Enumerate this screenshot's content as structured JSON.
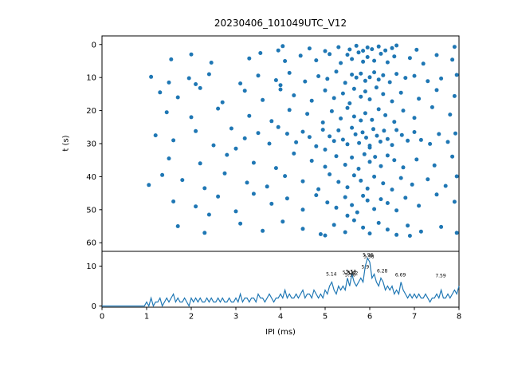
{
  "accent_color": "#1f77b4",
  "chart_data": [
    {
      "type": "scatter",
      "title": "20230406_101049UTC_V12",
      "ylabel": "t (s)",
      "xlim": [
        0,
        8
      ],
      "ylim": [
        63,
        -3
      ],
      "y_inverted": true,
      "yticks": [
        0,
        10,
        20,
        30,
        40,
        50,
        60
      ],
      "marker_color": "#1f77b4",
      "points": [
        [
          4.05,
          0.5
        ],
        [
          4.65,
          1.2
        ],
        [
          5.3,
          0.8
        ],
        [
          5.55,
          1.5
        ],
        [
          5.7,
          0.4
        ],
        [
          5.85,
          1.9
        ],
        [
          5.95,
          0.9
        ],
        [
          6.05,
          1.4
        ],
        [
          6.2,
          0.6
        ],
        [
          6.35,
          1.8
        ],
        [
          6.5,
          1.1
        ],
        [
          6.6,
          0.3
        ],
        [
          7.05,
          1.6
        ],
        [
          7.9,
          0.7
        ],
        [
          3.95,
          1.8
        ],
        [
          5.0,
          2.0
        ],
        [
          1.55,
          4.5
        ],
        [
          2.0,
          3.0
        ],
        [
          2.45,
          5.5
        ],
        [
          3.3,
          4.2
        ],
        [
          3.55,
          2.6
        ],
        [
          4.1,
          5.0
        ],
        [
          4.45,
          3.4
        ],
        [
          4.8,
          4.8
        ],
        [
          5.1,
          2.9
        ],
        [
          5.35,
          5.6
        ],
        [
          5.5,
          3.1
        ],
        [
          5.6,
          4.4
        ],
        [
          5.75,
          2.4
        ],
        [
          5.85,
          5.2
        ],
        [
          5.95,
          3.8
        ],
        [
          6.1,
          4.9
        ],
        [
          6.25,
          2.8
        ],
        [
          6.4,
          5.4
        ],
        [
          6.55,
          3.6
        ],
        [
          6.9,
          4.1
        ],
        [
          7.2,
          5.8
        ],
        [
          7.5,
          3.2
        ],
        [
          7.85,
          4.6
        ],
        [
          1.1,
          9.8
        ],
        [
          1.5,
          11.5
        ],
        [
          1.95,
          10.2
        ],
        [
          2.4,
          9.0
        ],
        [
          3.1,
          11.8
        ],
        [
          3.5,
          9.4
        ],
        [
          3.9,
          10.8
        ],
        [
          4.2,
          8.6
        ],
        [
          4.55,
          11.2
        ],
        [
          4.85,
          9.6
        ],
        [
          5.05,
          10.4
        ],
        [
          5.25,
          8.2
        ],
        [
          5.45,
          11.6
        ],
        [
          5.6,
          9.1
        ],
        [
          5.7,
          10.0
        ],
        [
          5.8,
          8.8
        ],
        [
          5.9,
          11.0
        ],
        [
          6.0,
          9.9
        ],
        [
          6.1,
          8.4
        ],
        [
          6.2,
          10.6
        ],
        [
          6.3,
          9.3
        ],
        [
          6.45,
          11.4
        ],
        [
          6.6,
          8.9
        ],
        [
          6.8,
          10.1
        ],
        [
          7.0,
          9.5
        ],
        [
          7.3,
          11.1
        ],
        [
          7.6,
          10.3
        ],
        [
          7.95,
          9.2
        ],
        [
          2.1,
          12.0
        ],
        [
          4.0,
          12.3
        ],
        [
          1.3,
          14.5
        ],
        [
          1.7,
          16.0
        ],
        [
          2.2,
          13.2
        ],
        [
          2.7,
          17.5
        ],
        [
          3.2,
          14.0
        ],
        [
          3.6,
          16.8
        ],
        [
          4.0,
          13.6
        ],
        [
          4.3,
          15.4
        ],
        [
          4.7,
          17.0
        ],
        [
          5.0,
          13.9
        ],
        [
          5.2,
          16.2
        ],
        [
          5.4,
          14.8
        ],
        [
          5.55,
          17.8
        ],
        [
          5.65,
          13.4
        ],
        [
          5.8,
          15.8
        ],
        [
          5.9,
          14.2
        ],
        [
          6.0,
          16.6
        ],
        [
          6.15,
          13.0
        ],
        [
          6.3,
          15.0
        ],
        [
          6.5,
          17.2
        ],
        [
          6.7,
          14.6
        ],
        [
          7.1,
          16.4
        ],
        [
          7.5,
          13.8
        ],
        [
          7.9,
          15.6
        ],
        [
          1.45,
          20.5
        ],
        [
          2.0,
          22.0
        ],
        [
          2.6,
          19.4
        ],
        [
          3.3,
          21.6
        ],
        [
          3.8,
          23.2
        ],
        [
          4.2,
          19.8
        ],
        [
          4.6,
          21.0
        ],
        [
          4.95,
          23.6
        ],
        [
          5.15,
          20.2
        ],
        [
          5.35,
          22.4
        ],
        [
          5.5,
          19.2
        ],
        [
          5.65,
          21.8
        ],
        [
          5.8,
          23.0
        ],
        [
          5.9,
          20.8
        ],
        [
          6.05,
          22.8
        ],
        [
          6.2,
          19.6
        ],
        [
          6.35,
          21.4
        ],
        [
          6.55,
          23.4
        ],
        [
          6.75,
          20.0
        ],
        [
          7.0,
          22.2
        ],
        [
          7.4,
          19.0
        ],
        [
          7.8,
          21.2
        ],
        [
          1.2,
          27.5
        ],
        [
          1.6,
          29.0
        ],
        [
          2.1,
          26.2
        ],
        [
          2.5,
          30.5
        ],
        [
          2.9,
          25.4
        ],
        [
          3.2,
          28.4
        ],
        [
          3.5,
          26.8
        ],
        [
          3.75,
          30.0
        ],
        [
          3.95,
          25.0
        ],
        [
          4.15,
          27.0
        ],
        [
          4.35,
          29.6
        ],
        [
          4.5,
          26.4
        ],
        [
          4.65,
          28.0
        ],
        [
          4.8,
          30.8
        ],
        [
          4.95,
          25.8
        ],
        [
          5.1,
          27.8
        ],
        [
          5.2,
          29.2
        ],
        [
          5.3,
          26.0
        ],
        [
          5.4,
          28.8
        ],
        [
          5.5,
          30.2
        ],
        [
          5.6,
          25.2
        ],
        [
          5.68,
          27.2
        ],
        [
          5.76,
          29.8
        ],
        [
          5.84,
          26.6
        ],
        [
          5.92,
          28.2
        ],
        [
          6.0,
          30.6
        ],
        [
          6.08,
          25.6
        ],
        [
          6.16,
          27.6
        ],
        [
          6.24,
          29.4
        ],
        [
          6.32,
          26.1
        ],
        [
          6.4,
          28.6
        ],
        [
          6.5,
          30.4
        ],
        [
          6.6,
          25.9
        ],
        [
          6.72,
          27.4
        ],
        [
          6.85,
          29.1
        ],
        [
          7.0,
          26.5
        ],
        [
          7.15,
          28.9
        ],
        [
          7.35,
          30.1
        ],
        [
          7.55,
          27.1
        ],
        [
          7.75,
          29.5
        ],
        [
          7.92,
          26.9
        ],
        [
          3.0,
          31.5
        ],
        [
          5.0,
          31.8
        ],
        [
          6.0,
          31.2
        ],
        [
          1.5,
          34.5
        ],
        [
          2.2,
          36.0
        ],
        [
          2.8,
          33.4
        ],
        [
          3.4,
          35.8
        ],
        [
          3.9,
          37.4
        ],
        [
          4.3,
          33.0
        ],
        [
          4.7,
          35.2
        ],
        [
          5.0,
          37.0
        ],
        [
          5.25,
          33.8
        ],
        [
          5.45,
          36.4
        ],
        [
          5.6,
          34.2
        ],
        [
          5.75,
          37.6
        ],
        [
          5.88,
          33.2
        ],
        [
          6.0,
          35.5
        ],
        [
          6.12,
          34.0
        ],
        [
          6.25,
          36.8
        ],
        [
          6.4,
          33.6
        ],
        [
          6.55,
          35.0
        ],
        [
          6.75,
          37.2
        ],
        [
          7.05,
          34.8
        ],
        [
          7.45,
          36.6
        ],
        [
          7.85,
          33.9
        ],
        [
          1.05,
          42.5
        ],
        [
          1.35,
          39.5
        ],
        [
          1.8,
          41.0
        ],
        [
          2.3,
          43.5
        ],
        [
          2.75,
          39.0
        ],
        [
          3.25,
          41.8
        ],
        [
          3.7,
          43.0
        ],
        [
          4.1,
          39.8
        ],
        [
          4.5,
          41.4
        ],
        [
          4.85,
          43.8
        ],
        [
          5.1,
          39.3
        ],
        [
          5.3,
          41.6
        ],
        [
          5.5,
          43.2
        ],
        [
          5.65,
          39.6
        ],
        [
          5.8,
          41.2
        ],
        [
          5.95,
          43.6
        ],
        [
          6.1,
          40.0
        ],
        [
          6.3,
          42.0
        ],
        [
          6.5,
          43.9
        ],
        [
          6.7,
          40.4
        ],
        [
          6.95,
          42.4
        ],
        [
          7.3,
          40.8
        ],
        [
          7.7,
          42.8
        ],
        [
          7.95,
          39.9
        ],
        [
          1.6,
          47.5
        ],
        [
          2.1,
          49.0
        ],
        [
          2.6,
          46.0
        ],
        [
          3.0,
          50.5
        ],
        [
          3.4,
          45.2
        ],
        [
          3.8,
          48.2
        ],
        [
          4.15,
          46.6
        ],
        [
          4.5,
          50.0
        ],
        [
          4.8,
          45.6
        ],
        [
          5.05,
          47.8
        ],
        [
          5.25,
          49.4
        ],
        [
          5.45,
          46.2
        ],
        [
          5.6,
          48.6
        ],
        [
          5.72,
          50.8
        ],
        [
          5.85,
          45.8
        ],
        [
          5.95,
          47.2
        ],
        [
          6.1,
          49.8
        ],
        [
          6.25,
          46.8
        ],
        [
          6.4,
          48.0
        ],
        [
          6.6,
          50.2
        ],
        [
          6.8,
          46.4
        ],
        [
          7.1,
          48.8
        ],
        [
          7.5,
          45.4
        ],
        [
          7.9,
          47.6
        ],
        [
          2.4,
          51.5
        ],
        [
          5.5,
          51.8
        ],
        [
          1.7,
          55.0
        ],
        [
          2.3,
          57.0
        ],
        [
          3.1,
          54.2
        ],
        [
          3.6,
          56.4
        ],
        [
          4.05,
          53.6
        ],
        [
          4.5,
          55.8
        ],
        [
          4.9,
          57.4
        ],
        [
          5.2,
          54.6
        ],
        [
          5.45,
          56.8
        ],
        [
          5.65,
          53.2
        ],
        [
          5.85,
          55.4
        ],
        [
          6.0,
          57.2
        ],
        [
          6.2,
          54.0
        ],
        [
          6.4,
          56.0
        ],
        [
          6.6,
          57.6
        ],
        [
          6.85,
          54.8
        ],
        [
          7.15,
          56.6
        ],
        [
          7.6,
          55.2
        ],
        [
          7.95,
          57.0
        ],
        [
          5.0,
          57.8
        ],
        [
          6.9,
          57.9
        ]
      ]
    },
    {
      "type": "line",
      "xlabel": "IPI (ms)",
      "xlim": [
        0,
        8
      ],
      "ylim": [
        0,
        13.7
      ],
      "xticks": [
        0,
        1,
        2,
        3,
        4,
        5,
        6,
        7,
        8
      ],
      "yticks": [
        0,
        10
      ],
      "line_color": "#1f77b4",
      "x_start": 0,
      "x_step": 0.05,
      "values": [
        0,
        0,
        0,
        0,
        0,
        0,
        0,
        0,
        0,
        0,
        0,
        0,
        0,
        0,
        0,
        0,
        0,
        0,
        0,
        0,
        1,
        0,
        2,
        0,
        1,
        1,
        2,
        0,
        1,
        2,
        1,
        2,
        3,
        1,
        2,
        1,
        1,
        2,
        1,
        0,
        2,
        1,
        2,
        1,
        2,
        1,
        1,
        2,
        1,
        2,
        1,
        1,
        2,
        1,
        2,
        1,
        1,
        2,
        1,
        1,
        2,
        1,
        3,
        1,
        2,
        2,
        1,
        2,
        2,
        1,
        3,
        2,
        2,
        1,
        2,
        3,
        2,
        1,
        2,
        2,
        3,
        2,
        4,
        2,
        3,
        2,
        2,
        3,
        2,
        3,
        4,
        2,
        3,
        3,
        2,
        4,
        3,
        2,
        3,
        2,
        4,
        3,
        5,
        6,
        4,
        3,
        5,
        4,
        5,
        4,
        7,
        5,
        8,
        6,
        5,
        6,
        7,
        6,
        10,
        12,
        11,
        7,
        8,
        6,
        5,
        7,
        6,
        4,
        5,
        4,
        5,
        3,
        4,
        3,
        6,
        4,
        3,
        2,
        3,
        2,
        3,
        2,
        3,
        2,
        2,
        3,
        2,
        1,
        2,
        2,
        3,
        2,
        4,
        2,
        2,
        3,
        2,
        3,
        4,
        3,
        5
      ],
      "annotations": [
        {
          "x": 5.14,
          "y": 7.4,
          "label": "5.14"
        },
        {
          "x": 5.51,
          "y": 7.8,
          "label": "5.51"
        },
        {
          "x": 5.56,
          "y": 7.2,
          "label": "5.56"
        },
        {
          "x": 5.58,
          "y": 8.0,
          "label": "5.58"
        },
        {
          "x": 5.62,
          "y": 7.6,
          "label": "5.62"
        },
        {
          "x": 5.9,
          "y": 9.2,
          "label": "5.9"
        },
        {
          "x": 5.96,
          "y": 12.2,
          "label": "5.96"
        },
        {
          "x": 5.98,
          "y": 11.8,
          "label": "5.98"
        },
        {
          "x": 6.28,
          "y": 8.2,
          "label": "6.28"
        },
        {
          "x": 6.69,
          "y": 7.2,
          "label": "6.69"
        },
        {
          "x": 7.59,
          "y": 7.0,
          "label": "7.59"
        }
      ]
    }
  ]
}
